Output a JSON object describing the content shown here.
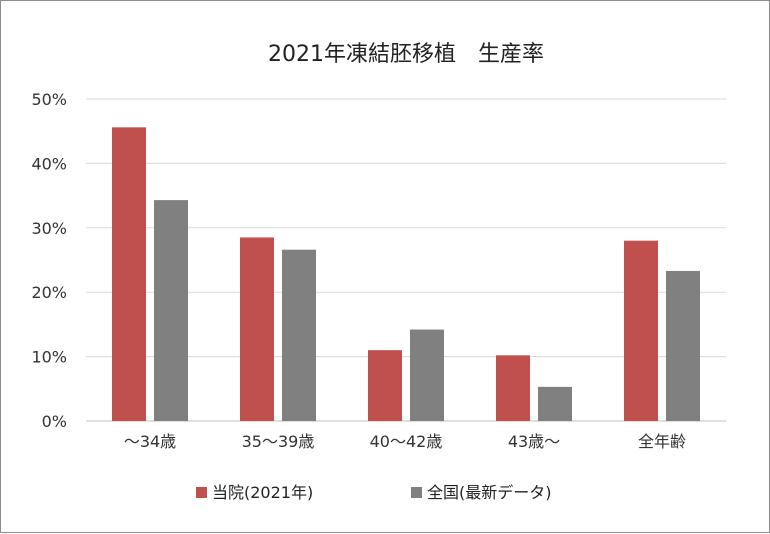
{
  "chart_data": {
    "type": "bar",
    "title": "2021年凍結胚移植　生産率",
    "categories": [
      "～34歳",
      "35～39歳",
      "40～42歳",
      "43歳～",
      "全年齢"
    ],
    "series": [
      {
        "name": "当院(2021年)",
        "color": "#c0504d",
        "values": [
          45.6,
          28.5,
          11.0,
          10.2,
          28.0
        ]
      },
      {
        "name": "全国(最新データ)",
        "color": "#808080",
        "values": [
          34.3,
          26.6,
          14.2,
          5.3,
          23.3
        ]
      }
    ],
    "ylim": [
      0,
      50
    ],
    "yticks": [
      "0%",
      "10%",
      "20%",
      "30%",
      "40%",
      "50%"
    ],
    "grid": true,
    "legend_position": "bottom"
  }
}
